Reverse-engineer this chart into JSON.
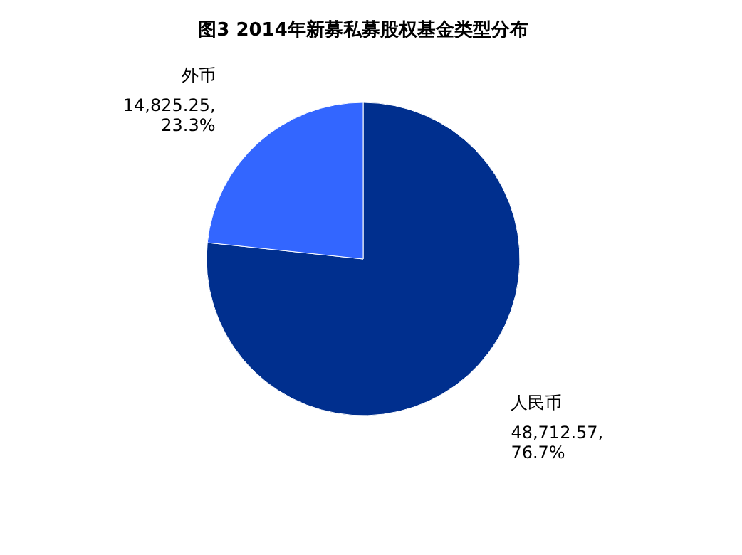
{
  "chart_data": {
    "type": "pie",
    "title": "图3 2014年新募私募股权基金类型分布",
    "categories": [
      "人民币",
      "外币"
    ],
    "values": [
      48712.57,
      14825.25
    ],
    "value_labels": [
      "48,712.57, 76.7%",
      "14,825.25, 23.3%"
    ],
    "colors": [
      "#002f8e",
      "#3366ff"
    ],
    "legend": false
  }
}
